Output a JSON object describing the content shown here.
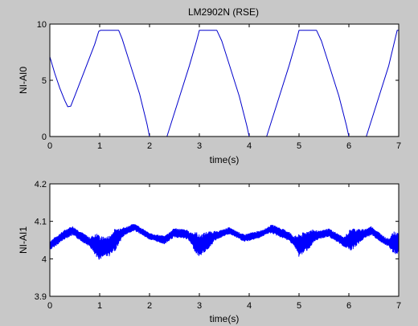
{
  "figure": {
    "background": "#c8c8c8"
  },
  "chart_data": [
    {
      "type": "line",
      "title": "LM2902N (RSE)",
      "xlabel": "time(s)",
      "ylabel": "NI-AI0",
      "xlim": [
        0,
        7
      ],
      "ylim": [
        0,
        10
      ],
      "xticks": [
        0,
        1,
        2,
        3,
        4,
        5,
        6,
        7
      ],
      "yticks": [
        0,
        5,
        10
      ],
      "grid": false,
      "series": [
        {
          "color": "#0000cc",
          "x": [
            0,
            0.1,
            0.2,
            0.3,
            0.36,
            0.42,
            0.5,
            0.7,
            0.9,
            0.98,
            1.02,
            1.38,
            1.45,
            1.6,
            1.8,
            1.95,
            2.0,
            2.35,
            2.45,
            2.6,
            2.8,
            2.95,
            3.0,
            3.35,
            3.45,
            3.6,
            3.8,
            3.95,
            4.0,
            4.35,
            4.45,
            4.6,
            4.8,
            4.95,
            5.0,
            5.35,
            5.45,
            5.6,
            5.8,
            5.95,
            6.0,
            6.35,
            6.45,
            6.6,
            6.8,
            6.97,
            7.0
          ],
          "y": [
            7.1,
            5.6,
            4.3,
            3.2,
            2.65,
            2.7,
            3.6,
            5.9,
            8.2,
            9.35,
            9.45,
            9.45,
            8.7,
            6.6,
            3.8,
            1.1,
            0.0,
            0.0,
            1.4,
            3.5,
            6.3,
            8.6,
            9.45,
            9.45,
            8.5,
            6.4,
            3.6,
            1.0,
            0.0,
            0.0,
            1.4,
            3.5,
            6.3,
            8.6,
            9.45,
            9.45,
            8.5,
            6.4,
            3.6,
            1.0,
            0.0,
            0.0,
            1.4,
            3.5,
            6.3,
            9.45,
            9.45
          ]
        }
      ]
    },
    {
      "type": "line",
      "xlabel": "time(s)",
      "ylabel": "NI-AI1",
      "xlim": [
        0,
        7
      ],
      "ylim": [
        3.9,
        4.2
      ],
      "xticks": [
        0,
        1,
        2,
        3,
        4,
        5,
        6,
        7
      ],
      "yticks": [
        3.9,
        4,
        4.1,
        4.2
      ],
      "ytick_labels": [
        "3.9",
        "4",
        "4.1",
        "4.2"
      ],
      "grid": false,
      "series": [
        {
          "color": "#0000ff",
          "baseline": [
            [
              0,
              4.035
            ],
            [
              0.3,
              4.065
            ],
            [
              0.45,
              4.075
            ],
            [
              0.8,
              4.045
            ],
            [
              1.0,
              4.03
            ],
            [
              1.2,
              4.035
            ],
            [
              1.45,
              4.07
            ],
            [
              1.7,
              4.085
            ],
            [
              2.0,
              4.06
            ],
            [
              2.3,
              4.05
            ],
            [
              2.5,
              4.07
            ],
            [
              2.75,
              4.065
            ],
            [
              3.0,
              4.035
            ],
            [
              3.3,
              4.06
            ],
            [
              3.6,
              4.075
            ],
            [
              3.9,
              4.055
            ],
            [
              4.2,
              4.065
            ],
            [
              4.45,
              4.08
            ],
            [
              4.8,
              4.06
            ],
            [
              5.0,
              4.035
            ],
            [
              5.3,
              4.06
            ],
            [
              5.6,
              4.07
            ],
            [
              5.9,
              4.045
            ],
            [
              6.2,
              4.06
            ],
            [
              6.45,
              4.075
            ],
            [
              6.75,
              4.045
            ],
            [
              7.0,
              4.04
            ]
          ],
          "noise_amplitude": [
            [
              0,
              0.012
            ],
            [
              0.8,
              0.012
            ],
            [
              0.95,
              0.035
            ],
            [
              1.1,
              0.025
            ],
            [
              1.3,
              0.03
            ],
            [
              1.5,
              0.01
            ],
            [
              2.0,
              0.008
            ],
            [
              2.5,
              0.012
            ],
            [
              2.8,
              0.012
            ],
            [
              2.95,
              0.03
            ],
            [
              3.15,
              0.025
            ],
            [
              3.35,
              0.01
            ],
            [
              3.7,
              0.008
            ],
            [
              4.0,
              0.01
            ],
            [
              4.35,
              0.008
            ],
            [
              4.5,
              0.012
            ],
            [
              4.9,
              0.012
            ],
            [
              5.0,
              0.03
            ],
            [
              5.2,
              0.025
            ],
            [
              5.4,
              0.01
            ],
            [
              5.9,
              0.012
            ],
            [
              6.05,
              0.03
            ],
            [
              6.3,
              0.012
            ],
            [
              6.8,
              0.01
            ],
            [
              6.9,
              0.03
            ],
            [
              7.0,
              0.03
            ]
          ]
        }
      ]
    }
  ]
}
